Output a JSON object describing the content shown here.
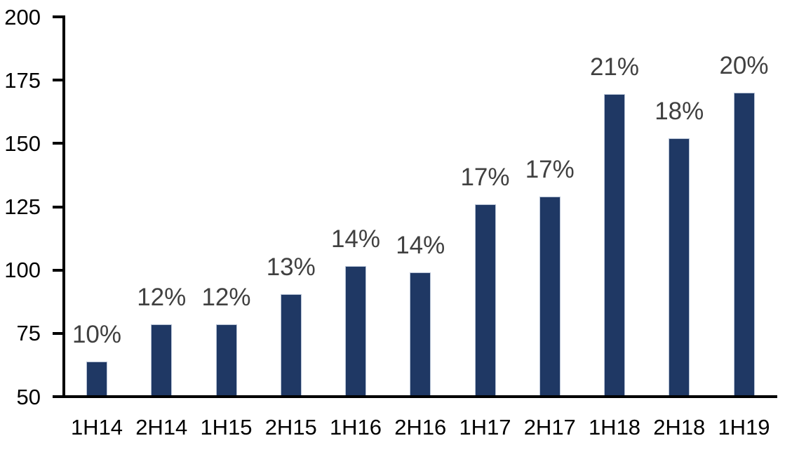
{
  "chart_data": {
    "type": "bar",
    "title": "",
    "xlabel": "",
    "ylabel": "",
    "categories": [
      "1H14",
      "2H14",
      "1H15",
      "2H15",
      "1H16",
      "2H16",
      "1H17",
      "2H17",
      "1H18",
      "2H18",
      "1H19"
    ],
    "values": [
      64,
      78.5,
      78.5,
      90.5,
      101.5,
      99,
      126,
      129,
      169.5,
      152,
      170
    ],
    "bar_labels": [
      "10%",
      "12%",
      "12%",
      "13%",
      "14%",
      "14%",
      "17%",
      "17%",
      "21%",
      "18%",
      "20%"
    ],
    "y_tick_labels": [
      "200",
      "175",
      "150",
      "125",
      "100",
      "75",
      "50"
    ],
    "y_ticks": [
      200,
      175,
      150,
      125,
      100,
      75,
      50
    ],
    "ylim": [
      50,
      200
    ],
    "grid": false,
    "legend": false,
    "colors": {
      "bar_fill": "#1F3864",
      "bar_border": "#B7C3D6",
      "axis": "#000000",
      "data_label": "#404040",
      "tick_label": "#000000",
      "background": "#FFFFFF"
    }
  }
}
